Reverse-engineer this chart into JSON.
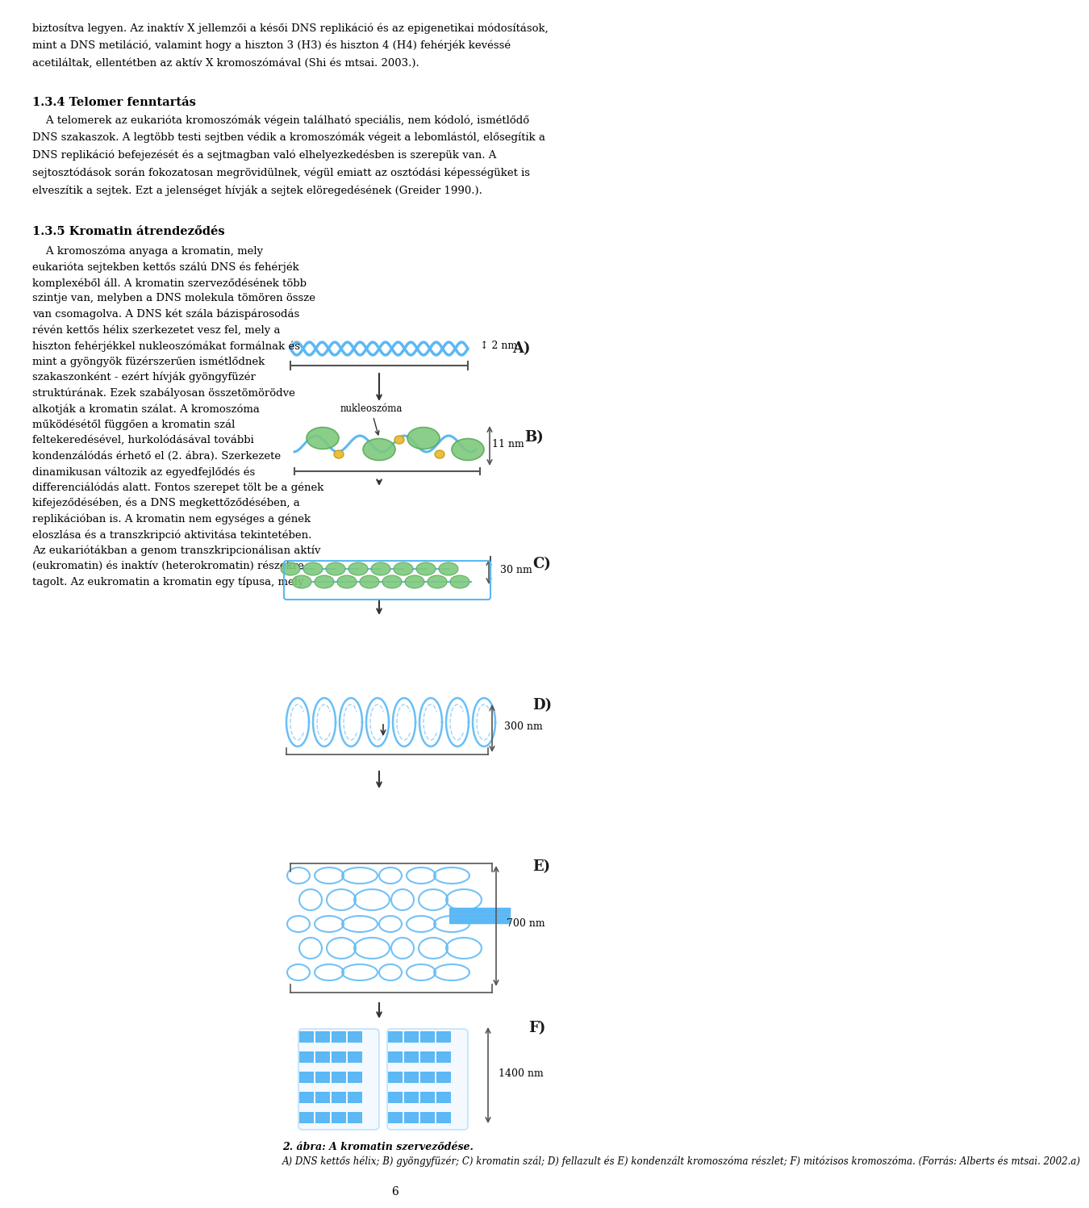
{
  "background_color": "#ffffff",
  "text_color": "#000000",
  "link_color": "#0000cc",
  "page_number": "6",
  "top_paragraph": "biztosítva legyen. Az inaktív X jellemzői a késői DNS replikáció és az epigenetikai módosítások, mint a DNS metiláció, valamint hogy a hiszton 3 (H3) és hiszton 4 (H4) fehérjék kevéssé acetiláltak, ellentétben az aktív X kromoszómával (Shi és mtsai. 2003.).",
  "top_para_links": [
    {
      "text": "H3",
      "color": "#0000cc"
    },
    {
      "text": "H4",
      "color": "#0000cc"
    },
    {
      "text": "Shi és mtsai. 2003.",
      "color": "#0000cc"
    }
  ],
  "section_134_title": "1.3.4 Telomer fenntartás",
  "section_134_body": "A telomerek az eukarióta kromoszómák végein található speciális, nem kódoló, ismétlődő DNS szakaszok. A legtöbb testi sejtben védik a kromoszómák végeit a lebomlástól, elősegítik a DNS replikáció befejezését és a sejtmagban való elhelyezkedésben is szerepük van. A sejtosztódások során fokozatosan megrövidülnek, végül emiatt az osztódási képességüket is elveszítik a sejtek. Ezt a jelenséget hívják a sejtek elöregedésének (Greider 1990.).",
  "greider_link": "Greider 1990.",
  "section_135_title": "1.3.5 Kromatin átrendeződés",
  "section_135_body_parts": [
    "A kromoszóma anyaga a kromatin, mely eukarióta sejtekben kettős szálú DNS és fehérjék komplexéből áll. A kromatin szerveződésének több szintje van, melyben a DNS molekula tömören össze van csomagolva. A DNS két szála bázispárosodás révén kettős hélix szerkezetet vesz fel, mely a hiszton fehérjékkel nukleoszómákat formálnak és mint a gyöngyök füzérszerűen ismétlődnek szakaszonként - ezért hívják gyöngyfüzér struktúrának. Ezek szabályosan összetömörödve alkotják a kromatin szálat. A kromoszóma működésétől függően a kromatin szál feltekeredésével, hurkolódásával további kondenzálódás érhető el (2. ábra). Szerkezete dinamikusan változik az egyedfejlődés és differenciálódás alatt. Fontos szerepet tölt be a gének kifejeződésében, és a DNS megkettőződésében, a replikációban is. A kromatin nem egységes a gének eloszlása és a transzkripció aktivitása tekintetében. Az eukariótákban a genom transzkripcionálisan aktív (eukromatin) és inaktív (heterokromatin) részekre tagolt. Az eukromatin a kromatin egy típusa, mely"
  ],
  "diagram_caption_bold": "2. ábra: A kromatin szerveződése.",
  "diagram_caption_italic": "A) DNS kettős hélix; B) gyöngyfüzér; C) kromatin szál; D) fellazult és E) kondenzált kromoszóma részlet; F) mitózisos kromoszóma. (Forrás: Alberts és mtsai. 2002.a)",
  "diagram_labels": [
    "A)",
    "B)",
    "C)",
    "D)",
    "E)",
    "F)"
  ],
  "diagram_sizes": [
    "2 nm",
    "11 nm",
    "30 nm",
    "300 nm",
    "700 nm",
    "1400 nm"
  ],
  "diagram_label_color": "#1a1a1a",
  "helix_color": "#5bb8f5",
  "nucleosome_color": "#7dc97d",
  "nucleosome_label": "nukleoszóma",
  "arrow_color": "#333333",
  "bracket_color": "#555555"
}
